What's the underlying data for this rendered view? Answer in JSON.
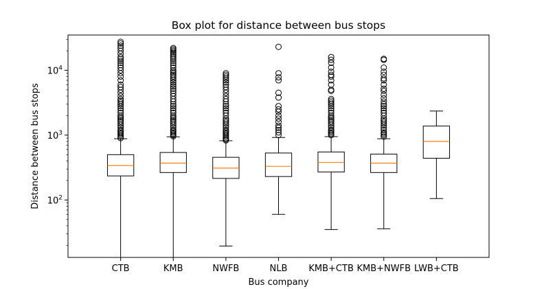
{
  "chart_data": {
    "type": "box",
    "title": "Box plot for distance between bus stops",
    "xlabel": "Bus company",
    "ylabel": "Distance between bus stops",
    "yscale": "log",
    "ylim": [
      13,
      35000
    ],
    "yticks": [
      {
        "value": 100,
        "base": "10",
        "exp": "2"
      },
      {
        "value": 1000,
        "base": "10",
        "exp": "3"
      },
      {
        "value": 10000,
        "base": "10",
        "exp": "4"
      }
    ],
    "grid": false,
    "colors": {
      "box": "#000000",
      "median": "#ff7f0e",
      "flier": "#000000"
    },
    "categories": [
      "CTB",
      "KMB",
      "NWFB",
      "NLB",
      "KMB+CTB",
      "KMB+NWFB",
      "LWB+CTB"
    ],
    "boxes": [
      {
        "name": "CTB",
        "whisker_low": 13,
        "q1": 235,
        "median": 340,
        "q3": 500,
        "whisker_high": 880,
        "fliers": [
          900,
          950,
          1000,
          1050,
          1100,
          1150,
          1200,
          1300,
          1400,
          1500,
          1600,
          1700,
          1800,
          1900,
          2000,
          2200,
          2400,
          2600,
          2800,
          3000,
          3200,
          3400,
          3600,
          4000,
          4500,
          5000,
          5500,
          6000,
          7000,
          8000,
          9000,
          10000,
          11000,
          12000,
          13000,
          14000,
          15000,
          16000,
          18000,
          20000,
          22000,
          24000,
          26000,
          27500
        ]
      },
      {
        "name": "KMB",
        "whisker_low": 13,
        "q1": 265,
        "median": 370,
        "q3": 540,
        "whisker_high": 940,
        "fliers": [
          960,
          1000,
          1050,
          1100,
          1150,
          1200,
          1300,
          1400,
          1500,
          1600,
          1700,
          1800,
          1900,
          2000,
          2200,
          2400,
          2600,
          2800,
          3000,
          3300,
          3600,
          4000,
          4400,
          4800,
          5200,
          5600,
          6000,
          6500,
          7000,
          7500,
          8000,
          8500,
          9000,
          9500,
          10000,
          11000,
          12000,
          13000,
          14000,
          15000,
          16000,
          17000,
          18000,
          19000,
          20000,
          21000,
          22000
        ]
      },
      {
        "name": "NWFB",
        "whisker_low": 19.5,
        "q1": 215,
        "median": 310,
        "q3": 455,
        "whisker_high": 820,
        "fliers": [
          830,
          860,
          900,
          950,
          1000,
          1050,
          1100,
          1150,
          1200,
          1300,
          1400,
          1500,
          1600,
          1700,
          1800,
          2000,
          2200,
          2400,
          2600,
          2800,
          3000,
          3300,
          3600,
          4000,
          4500,
          5000,
          5500,
          6000,
          6500,
          7000,
          7500,
          8000,
          8500,
          9000
        ]
      },
      {
        "name": "NLB",
        "whisker_low": 60,
        "q1": 230,
        "median": 330,
        "q3": 530,
        "whisker_high": 920,
        "fliers": [
          1000,
          1100,
          1200,
          1300,
          1400,
          1600,
          1800,
          2000,
          2300,
          2500,
          2800,
          3800,
          4500,
          7000,
          7800,
          9000,
          23000
        ]
      },
      {
        "name": "KMB+CTB",
        "whisker_low": 35,
        "q1": 270,
        "median": 380,
        "q3": 550,
        "whisker_high": 950,
        "fliers": [
          1000,
          1050,
          1100,
          1150,
          1200,
          1300,
          1400,
          1500,
          1600,
          1700,
          1800,
          1900,
          2000,
          2200,
          2400,
          2600,
          2800,
          3000,
          3200,
          3400,
          3600,
          4800,
          5000,
          6000,
          7000,
          8000,
          8500,
          9500,
          11000,
          13000,
          14500,
          16000
        ]
      },
      {
        "name": "KMB+NWFB",
        "whisker_low": 36,
        "q1": 265,
        "median": 370,
        "q3": 510,
        "whisker_high": 880,
        "fliers": [
          950,
          1000,
          1050,
          1100,
          1200,
          1300,
          1400,
          1500,
          1600,
          1700,
          1800,
          2000,
          2200,
          2400,
          2600,
          2800,
          3000,
          3300,
          3700,
          4200,
          4800,
          5200,
          6000,
          7000,
          7500,
          8500,
          9500,
          11000,
          14500,
          15000
        ]
      },
      {
        "name": "LWB+CTB",
        "whisker_low": 105,
        "q1": 440,
        "median": 800,
        "q3": 1380,
        "whisker_high": 2350,
        "fliers": []
      }
    ]
  }
}
